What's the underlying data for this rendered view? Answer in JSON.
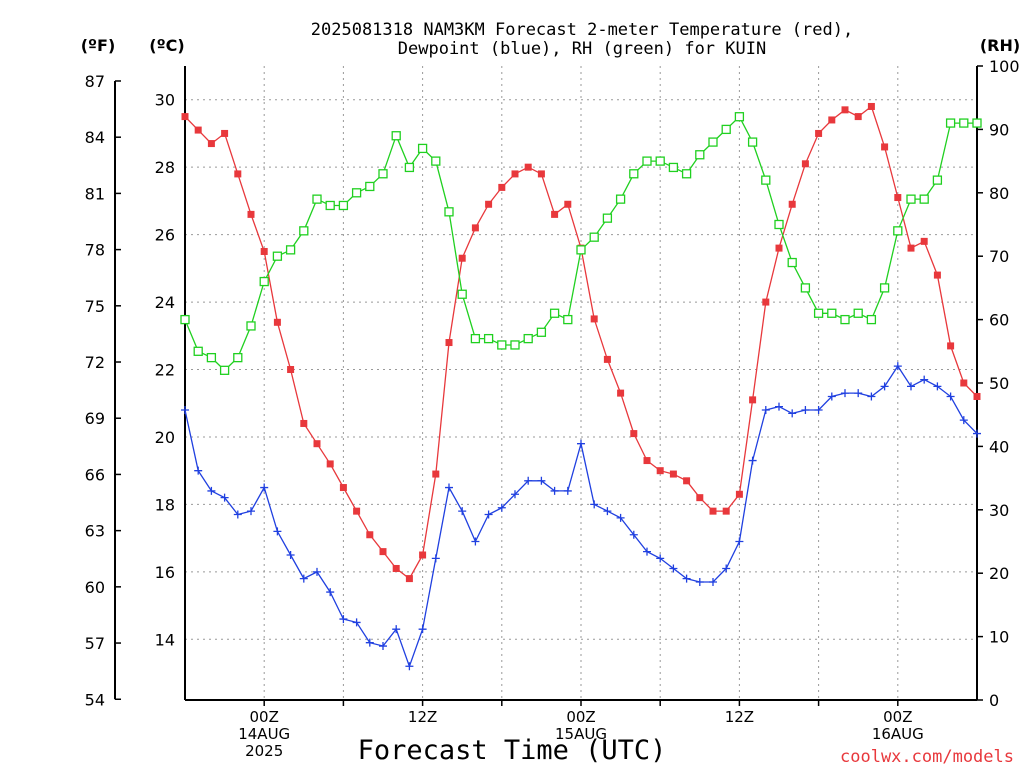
{
  "chart_data": {
    "type": "line",
    "title_line1": "2025081318 NAM3KM Forecast 2-meter Temperature (red),",
    "title_line2": "Dewpoint (blue), RH (green) for KUIN",
    "xlabel": "Forecast Time (UTC)",
    "credit": "coolwx.com/models",
    "left_units": [
      "(ºF)",
      "(ºC)"
    ],
    "right_unit": "(RH)",
    "x_start_hours_after_0z_14aug": -6,
    "x_range_hours": [
      -6,
      54
    ],
    "x_ticks": [
      {
        "hour": 0,
        "lines": [
          "00Z",
          "14AUG",
          "2025"
        ]
      },
      {
        "hour": 12,
        "lines": [
          "12Z"
        ]
      },
      {
        "hour": 24,
        "lines": [
          "00Z",
          "15AUG"
        ]
      },
      {
        "hour": 36,
        "lines": [
          "12Z"
        ]
      },
      {
        "hour": 48,
        "lines": [
          "00Z",
          "16AUG"
        ]
      }
    ],
    "ylim_c": [
      12.2,
      31.0
    ],
    "yticks_c": [
      14,
      16,
      18,
      20,
      22,
      24,
      26,
      28,
      30
    ],
    "yticks_f": [
      54,
      57,
      60,
      63,
      66,
      69,
      72,
      75,
      78,
      81,
      84,
      87
    ],
    "ylim_rh": [
      0,
      100
    ],
    "yticks_rh": [
      0,
      10,
      20,
      30,
      40,
      50,
      60,
      70,
      80,
      90,
      100
    ],
    "grid": true,
    "colors": {
      "temperature": "#e8383c",
      "dewpoint": "#2040e0",
      "rh": "#20d020",
      "grid": "#999999"
    },
    "series": [
      {
        "name": "2-meter Temperature (red)",
        "unit": "°C",
        "marker": "square-filled",
        "values": [
          29.5,
          29.1,
          28.7,
          29.0,
          27.8,
          26.6,
          25.5,
          23.4,
          22.0,
          20.4,
          19.8,
          19.2,
          18.5,
          17.8,
          17.1,
          16.6,
          16.1,
          15.8,
          16.5,
          18.9,
          22.8,
          25.3,
          26.2,
          26.9,
          27.4,
          27.8,
          28.0,
          27.8,
          26.6,
          26.9,
          25.6,
          23.5,
          22.3,
          21.3,
          20.1,
          19.3,
          19.0,
          18.9,
          18.7,
          18.2,
          17.8,
          17.8,
          18.3,
          21.1,
          24.0,
          25.6,
          26.9,
          28.1,
          29.0,
          29.4,
          29.7,
          29.5,
          29.8,
          28.6,
          27.1,
          25.6,
          25.8,
          24.8,
          22.7,
          21.6,
          21.2
        ]
      },
      {
        "name": "Dewpoint (blue)",
        "unit": "°C",
        "marker": "plus",
        "values": [
          20.8,
          19.0,
          18.4,
          18.2,
          17.7,
          17.8,
          18.5,
          17.2,
          16.5,
          15.8,
          16.0,
          15.4,
          14.6,
          14.5,
          13.9,
          13.8,
          14.3,
          13.2,
          14.3,
          16.4,
          18.5,
          17.8,
          16.9,
          17.7,
          17.9,
          18.3,
          18.7,
          18.7,
          18.4,
          18.4,
          19.8,
          18.0,
          17.8,
          17.6,
          17.1,
          16.6,
          16.4,
          16.1,
          15.8,
          15.7,
          15.7,
          16.1,
          16.9,
          19.3,
          20.8,
          20.9,
          20.7,
          20.8,
          20.8,
          21.2,
          21.3,
          21.3,
          21.2,
          21.5,
          22.1,
          21.5,
          21.7,
          21.5,
          21.2,
          20.5,
          20.1
        ]
      },
      {
        "name": "RH (green)",
        "unit": "%",
        "marker": "square-open",
        "values": [
          60,
          55,
          54,
          52,
          54,
          59,
          66,
          70,
          71,
          74,
          79,
          78,
          78,
          80,
          81,
          83,
          89,
          84,
          87,
          85,
          77,
          64,
          57,
          57,
          56,
          56,
          57,
          58,
          61,
          60,
          71,
          73,
          76,
          79,
          83,
          85,
          85,
          84,
          83,
          86,
          88,
          90,
          92,
          88,
          82,
          75,
          69,
          65,
          61,
          61,
          60,
          61,
          60,
          65,
          74,
          79,
          79,
          82,
          91,
          91,
          91
        ]
      }
    ]
  }
}
